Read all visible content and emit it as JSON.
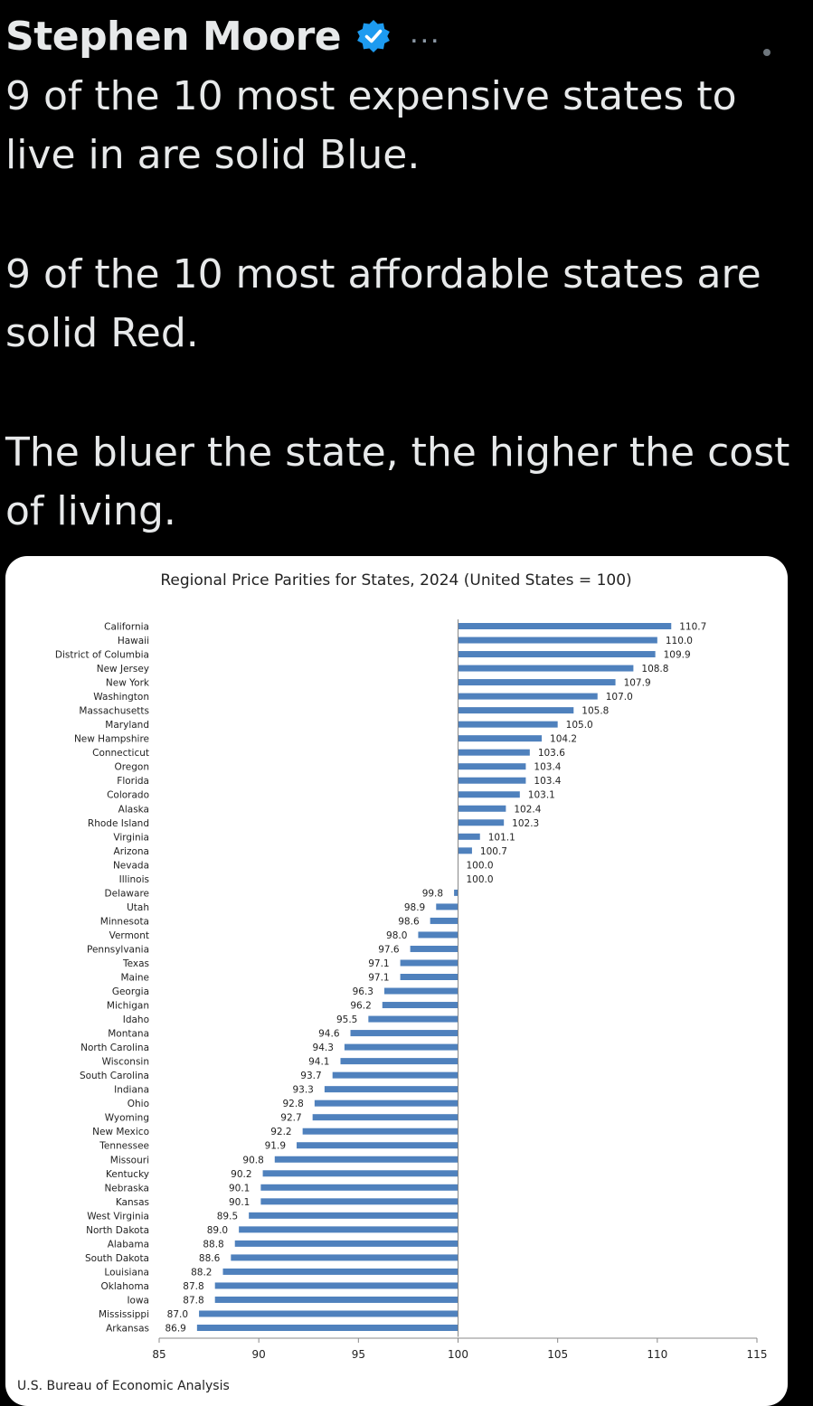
{
  "tweet": {
    "author_name": "Stephen Moore",
    "more_label": "...",
    "paragraphs": [
      "9 of the 10 most expensive states to live in are solid Blue.",
      "9 of the 10 most affordable states are solid Red.",
      "The bluer the state, the higher the cost of living."
    ]
  },
  "colors": {
    "verified": "#1d9bf0",
    "bar": "#4f81bd",
    "background": "#000000",
    "text": "#e7e9ea"
  },
  "icons": {
    "verified": "verified-badge-icon",
    "more": "more-options-icon"
  },
  "chart_data": {
    "type": "bar",
    "orientation": "horizontal",
    "title": "Regional Price Parities for States, 2024 (United States = 100)",
    "source": "U.S. Bureau of Economic Analysis",
    "baseline": 100,
    "xlim": [
      85,
      115
    ],
    "xticks": [
      85,
      90,
      95,
      100,
      105,
      110,
      115
    ],
    "categories": [
      "California",
      "Hawaii",
      "District of Columbia",
      "New Jersey",
      "New York",
      "Washington",
      "Massachusetts",
      "Maryland",
      "New Hampshire",
      "Connecticut",
      "Oregon",
      "Florida",
      "Colorado",
      "Alaska",
      "Rhode Island",
      "Virginia",
      "Arizona",
      "Nevada",
      "Illinois",
      "Delaware",
      "Utah",
      "Minnesota",
      "Vermont",
      "Pennsylvania",
      "Texas",
      "Maine",
      "Georgia",
      "Michigan",
      "Idaho",
      "Montana",
      "North Carolina",
      "Wisconsin",
      "South Carolina",
      "Indiana",
      "Ohio",
      "Wyoming",
      "New Mexico",
      "Tennessee",
      "Missouri",
      "Kentucky",
      "Nebraska",
      "Kansas",
      "West Virginia",
      "North Dakota",
      "Alabama",
      "South Dakota",
      "Louisiana",
      "Oklahoma",
      "Iowa",
      "Mississippi",
      "Arkansas"
    ],
    "values": [
      110.7,
      110.0,
      109.9,
      108.8,
      107.9,
      107.0,
      105.8,
      105.0,
      104.2,
      103.6,
      103.4,
      103.4,
      103.1,
      102.4,
      102.3,
      101.1,
      100.7,
      100.0,
      100.0,
      99.8,
      98.9,
      98.6,
      98.0,
      97.6,
      97.1,
      97.1,
      96.3,
      96.2,
      95.5,
      94.6,
      94.3,
      94.1,
      93.7,
      93.3,
      92.8,
      92.7,
      92.2,
      91.9,
      90.8,
      90.2,
      90.1,
      90.1,
      89.5,
      89.0,
      88.8,
      88.6,
      88.2,
      87.8,
      87.8,
      87.0,
      86.9
    ],
    "value_labels": [
      "110.7",
      "110.0",
      "109.9",
      "108.8",
      "107.9",
      "107.0",
      "105.8",
      "105.0",
      "104.2",
      "103.6",
      "103.4",
      "103.4",
      "103.1",
      "102.4",
      "102.3",
      "101.1",
      "100.7",
      "100.0",
      "100.0",
      "99.8",
      "98.9",
      "98.6",
      "98.0",
      "97.6",
      "97.1",
      "97.1",
      "96.3",
      "96.2",
      "95.5",
      "94.6",
      "94.3",
      "94.1",
      "93.7",
      "93.3",
      "92.8",
      "92.7",
      "92.2",
      "91.9",
      "90.8",
      "90.2",
      "90.1",
      "90.1",
      "89.5",
      "89.0",
      "88.8",
      "88.6",
      "88.2",
      "87.8",
      "87.8",
      "87.0",
      "86.9"
    ]
  }
}
